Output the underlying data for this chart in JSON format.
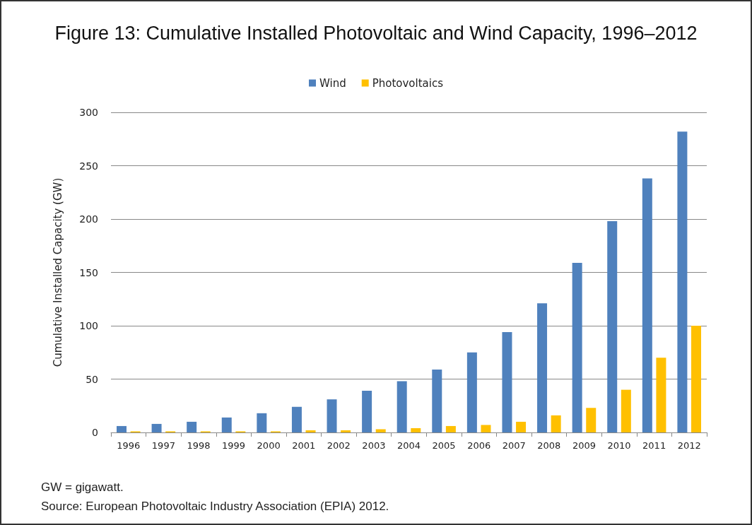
{
  "chart_data": {
    "type": "bar",
    "title": "Figure 13: Cumulative Installed Photovoltaic and Wind Capacity, 1996–2012",
    "ylabel": "Cumulative Installed Capacity (GW)",
    "categories": [
      "1996",
      "1997",
      "1998",
      "1999",
      "2000",
      "2001",
      "2002",
      "2003",
      "2004",
      "2005",
      "2006",
      "2007",
      "2008",
      "2009",
      "2010",
      "2011",
      "2012"
    ],
    "series": [
      {
        "name": "Wind",
        "color": "#4f81bd",
        "values": [
          6,
          8,
          10,
          14,
          18,
          24,
          31,
          39,
          48,
          59,
          75,
          94,
          121,
          159,
          198,
          238,
          282
        ]
      },
      {
        "name": "Photovoltaics",
        "color": "#ffc000",
        "values": [
          1,
          1,
          1,
          1,
          1,
          2,
          2,
          3,
          4,
          6,
          7,
          10,
          16,
          23,
          40,
          70,
          100
        ]
      }
    ],
    "ylim": [
      0,
      300
    ],
    "yticks": [
      0,
      50,
      100,
      150,
      200,
      250,
      300
    ],
    "grid": "y",
    "legend": "top",
    "annotations": [
      "GW = gigawatt.",
      "Source: European Photovoltaic Industry Association (EPIA) 2012."
    ]
  }
}
